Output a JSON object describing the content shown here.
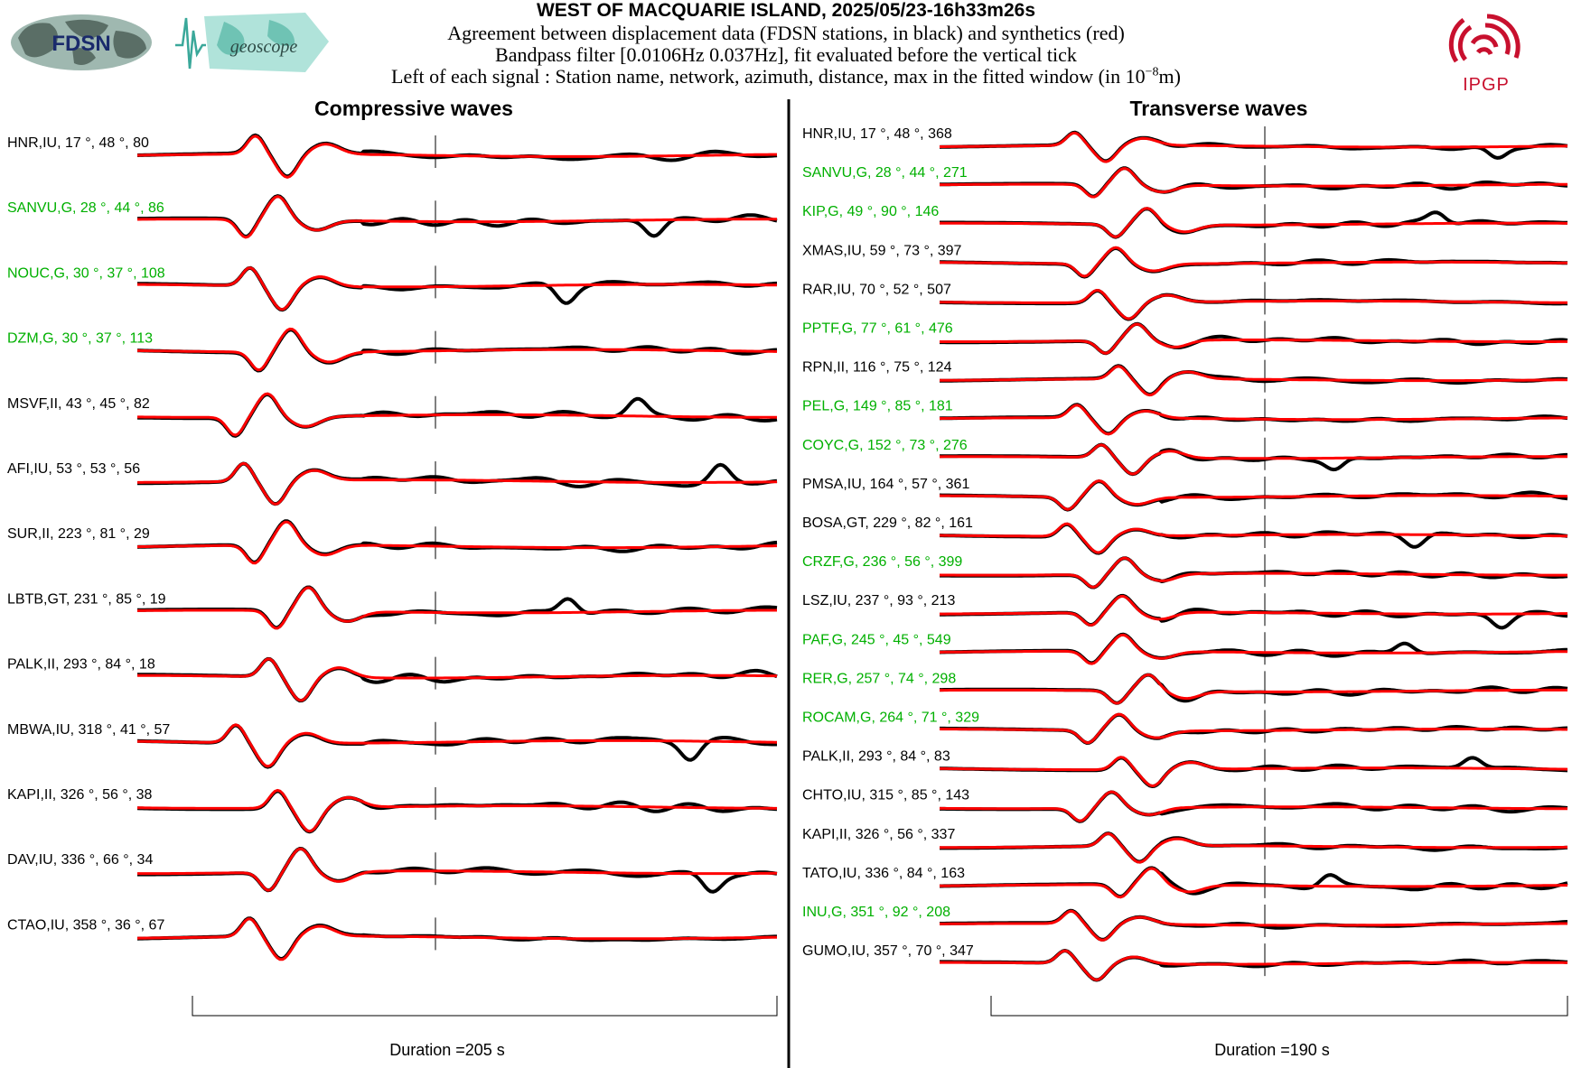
{
  "header": {
    "title": "WEST OF MACQUARIE ISLAND, 2025/05/23-16h33m26s",
    "line1": "Agreement between displacement data (FDSN stations, in black) and synthetics (red)",
    "line2": "Bandpass filter [0.0106Hz 0.037Hz], fit evaluated before the vertical tick",
    "line3_prefix": "Left of each signal : Station name, network, azimuth, distance, max in the fitted window (in 10",
    "line3_exp": "−8",
    "line3_suffix": "m)",
    "logos": {
      "left1": "FDSN",
      "left2": "geoscope",
      "right": "IPGP"
    }
  },
  "colors": {
    "data": "#000000",
    "synthetic": "#ff0000",
    "label_ok": "#00b000",
    "label_default": "#000000",
    "ipgp": "#c8102e"
  },
  "chart_data": [
    {
      "type": "line",
      "title": "Compressive waves",
      "duration_label": "Duration =205 s",
      "duration_s": 205,
      "series": [
        "data",
        "synthetics"
      ],
      "stations": [
        {
          "label": "HNR,IU, 17 °, 48 °, 80",
          "green": false
        },
        {
          "label": "SANVU,G, 28 °, 44 °, 86",
          "green": true
        },
        {
          "label": "NOUC,G, 30 °, 37 °, 108",
          "green": true
        },
        {
          "label": "DZM,G, 30 °, 37 °, 113",
          "green": true
        },
        {
          "label": "MSVF,II, 43 °, 45 °, 82",
          "green": false
        },
        {
          "label": "AFI,IU, 53 °, 53 °, 56",
          "green": false
        },
        {
          "label": "SUR,II, 223 °, 81 °, 29",
          "green": false
        },
        {
          "label": "LBTB,GT, 231 °, 85 °, 19",
          "green": false
        },
        {
          "label": "PALK,II, 293 °, 84 °, 18",
          "green": false
        },
        {
          "label": "MBWA,IU, 318 °, 41 °, 57",
          "green": false
        },
        {
          "label": "KAPI,II, 326 °, 56 °, 38",
          "green": false
        },
        {
          "label": "DAV,IU, 336 °, 66 °, 34",
          "green": false
        },
        {
          "label": "CTAO,IU, 358 °, 36 °, 67",
          "green": false
        }
      ]
    },
    {
      "type": "line",
      "title": "Transverse waves",
      "duration_label": "Duration =190 s",
      "duration_s": 190,
      "series": [
        "data",
        "synthetics"
      ],
      "stations": [
        {
          "label": "HNR,IU, 17 °, 48 °, 368",
          "green": false
        },
        {
          "label": "SANVU,G, 28 °, 44 °, 271",
          "green": true
        },
        {
          "label": "KIP,G, 49 °, 90 °, 146",
          "green": true
        },
        {
          "label": "XMAS,IU, 59 °, 73 °, 397",
          "green": false
        },
        {
          "label": "RAR,IU, 70 °, 52 °, 507",
          "green": false
        },
        {
          "label": "PPTF,G, 77 °, 61 °, 476",
          "green": true
        },
        {
          "label": "RPN,II, 116 °, 75 °, 124",
          "green": false
        },
        {
          "label": "PEL,G, 149 °, 85 °, 181",
          "green": true
        },
        {
          "label": "COYC,G, 152 °, 73 °, 276",
          "green": true
        },
        {
          "label": "PMSA,IU, 164 °, 57 °, 361",
          "green": false
        },
        {
          "label": "BOSA,GT, 229 °, 82 °, 161",
          "green": false
        },
        {
          "label": "CRZF,G, 236 °, 56 °, 399",
          "green": true
        },
        {
          "label": "LSZ,IU, 237 °, 93 °, 213",
          "green": false
        },
        {
          "label": "PAF,G, 245 °, 45 °, 549",
          "green": true
        },
        {
          "label": "RER,G, 257 °, 74 °, 298",
          "green": true
        },
        {
          "label": "ROCAM,G, 264 °, 71 °, 329",
          "green": true
        },
        {
          "label": "PALK,II, 293 °, 84 °, 83",
          "green": false
        },
        {
          "label": "CHTO,IU, 315 °, 85 °, 143",
          "green": false
        },
        {
          "label": "KAPI,II, 326 °, 56 °, 337",
          "green": false
        },
        {
          "label": "TATO,IU, 336 °, 84 °, 163",
          "green": false
        },
        {
          "label": "INU,G, 351 °, 92 °, 208",
          "green": true
        },
        {
          "label": "GUMO,IU, 357 °, 70 °, 347",
          "green": false
        }
      ]
    }
  ]
}
